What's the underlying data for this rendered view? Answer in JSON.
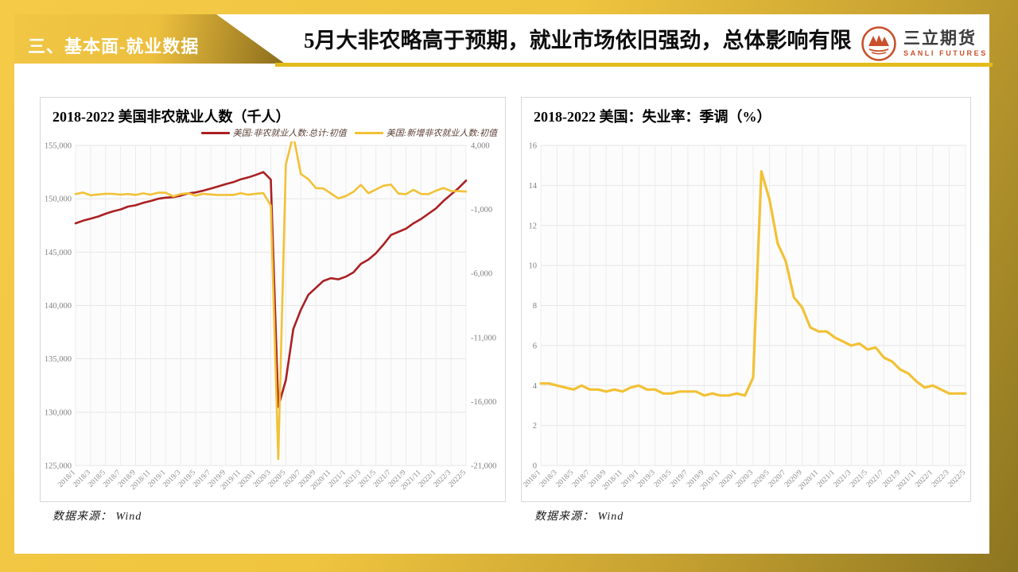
{
  "header": {
    "section_title": "三、基本面-就业数据",
    "main_title": "5月大非农略高于预期，就业市场依旧强劲，总体影响有限",
    "logo": {
      "name_cn": "三立期货",
      "name_en": "SANLI FUTURES",
      "mark": "mountain-peaks-in-circle",
      "color": "#C8502B"
    }
  },
  "colors": {
    "frame_gold_light": "#F4CA47",
    "frame_gold_dark": "#8C7520",
    "underline_gold": "#E2BC1C",
    "series_red": "#AA2023",
    "series_yellow": "#F2C136",
    "grid": "#e6e6e6",
    "tick_text": "#808080"
  },
  "chart_data": [
    {
      "type": "line",
      "title": "2018-2022 美国非农就业人数（千人）",
      "source": "数据来源： Wind",
      "legend_position": "top-right",
      "grid": true,
      "x": [
        "2018/1",
        "2018/2",
        "2018/3",
        "2018/4",
        "2018/5",
        "2018/6",
        "2018/7",
        "2018/8",
        "2018/9",
        "2018/10",
        "2018/11",
        "2018/12",
        "2019/1",
        "2019/2",
        "2019/3",
        "2019/4",
        "2019/5",
        "2019/6",
        "2019/7",
        "2019/8",
        "2019/9",
        "2019/10",
        "2019/11",
        "2019/12",
        "2020/1",
        "2020/2",
        "2020/3",
        "2020/4",
        "2020/5",
        "2020/6",
        "2020/7",
        "2020/8",
        "2020/9",
        "2020/10",
        "2020/11",
        "2020/12",
        "2021/1",
        "2021/2",
        "2021/3",
        "2021/4",
        "2021/5",
        "2021/6",
        "2021/7",
        "2021/8",
        "2021/9",
        "2021/10",
        "2021/11",
        "2021/12",
        "2022/1",
        "2022/2",
        "2022/3",
        "2022/4",
        "2022/5"
      ],
      "x_label_every": 2,
      "left_axis": {
        "min": 125000,
        "max": 155000,
        "step": 5000
      },
      "right_axis": {
        "min": -21000,
        "max": 4000,
        "step": 5000
      },
      "series": [
        {
          "name": "美国:非农就业人数:总计:初值",
          "axis": "left",
          "color": "#AA2023",
          "width": 2.6,
          "values": [
            147700,
            147940,
            148130,
            148330,
            148600,
            148820,
            149000,
            149270,
            149390,
            149620,
            149790,
            150000,
            150100,
            150150,
            150290,
            150500,
            150590,
            150760,
            150950,
            151160,
            151370,
            151550,
            151820,
            152000,
            152230,
            152500,
            151800,
            130500,
            133000,
            137800,
            139600,
            141000,
            141650,
            142300,
            142550,
            142450,
            142700,
            143100,
            143900,
            144300,
            144900,
            145700,
            146600,
            146900,
            147200,
            147700,
            148100,
            148600,
            149100,
            149800,
            150400,
            151000,
            151700
          ]
        },
        {
          "name": "美国:新增非农就业人数:初值",
          "axis": "right",
          "color": "#F2C136",
          "width": 2.6,
          "values": [
            200,
            313,
            103,
            164,
            223,
            213,
            157,
            201,
            134,
            250,
            155,
            312,
            304,
            20,
            196,
            263,
            75,
            224,
            164,
            130,
            136,
            128,
            266,
            145,
            225,
            273,
            -701,
            -20500,
            2509,
            4800,
            1763,
            1371,
            661,
            638,
            245,
            -140,
            49,
            379,
            916,
            266,
            559,
            850,
            943,
            235,
            194,
            531,
            210,
            199,
            467,
            678,
            431,
            428,
            390
          ]
        }
      ]
    },
    {
      "type": "line",
      "title": "2018-2022 美国：失业率：季调（%）",
      "source": "数据来源： Wind",
      "grid": true,
      "x": [
        "2018/1",
        "2018/2",
        "2018/3",
        "2018/4",
        "2018/5",
        "2018/6",
        "2018/7",
        "2018/8",
        "2018/9",
        "2018/10",
        "2018/11",
        "2018/12",
        "2019/1",
        "2019/2",
        "2019/3",
        "2019/4",
        "2019/5",
        "2019/6",
        "2019/7",
        "2019/8",
        "2019/9",
        "2019/10",
        "2019/11",
        "2019/12",
        "2020/1",
        "2020/2",
        "2020/3",
        "2020/4",
        "2020/5",
        "2020/6",
        "2020/7",
        "2020/8",
        "2020/9",
        "2020/10",
        "2020/11",
        "2020/12",
        "2021/1",
        "2021/2",
        "2021/3",
        "2021/4",
        "2021/5",
        "2021/6",
        "2021/7",
        "2021/8",
        "2021/9",
        "2021/10",
        "2021/11",
        "2021/12",
        "2022/1",
        "2022/2",
        "2022/3",
        "2022/4",
        "2022/5"
      ],
      "x_label_every": 2,
      "left_axis": {
        "min": 0,
        "max": 16,
        "step": 2
      },
      "series": [
        {
          "name": "美国:失业率:季调",
          "axis": "left",
          "color": "#F2C136",
          "width": 3.2,
          "values": [
            4.1,
            4.1,
            4.0,
            3.9,
            3.8,
            4.0,
            3.8,
            3.8,
            3.7,
            3.8,
            3.7,
            3.9,
            4.0,
            3.8,
            3.8,
            3.6,
            3.6,
            3.7,
            3.7,
            3.7,
            3.5,
            3.6,
            3.5,
            3.5,
            3.6,
            3.5,
            4.4,
            14.7,
            13.3,
            11.1,
            10.2,
            8.4,
            7.9,
            6.9,
            6.7,
            6.7,
            6.4,
            6.2,
            6.0,
            6.1,
            5.8,
            5.9,
            5.4,
            5.2,
            4.8,
            4.6,
            4.2,
            3.9,
            4.0,
            3.8,
            3.6,
            3.6,
            3.6
          ]
        }
      ]
    }
  ]
}
